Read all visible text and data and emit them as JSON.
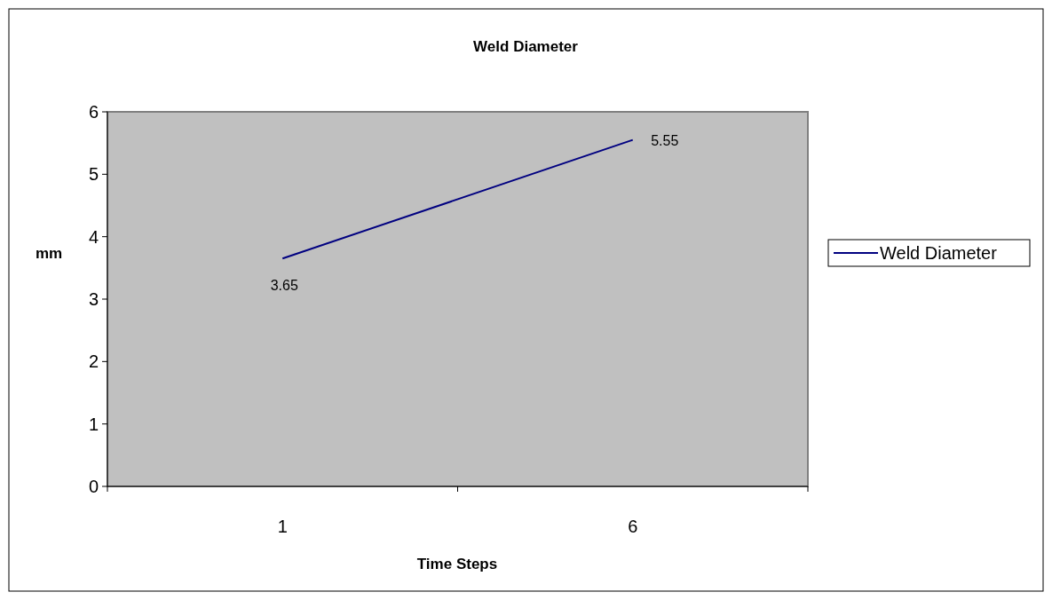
{
  "chart_data": {
    "type": "line",
    "title": "Weld Diameter",
    "xlabel": "Time Steps",
    "ylabel": "mm",
    "categories": [
      "1",
      "6"
    ],
    "series": [
      {
        "name": "Weld Diameter",
        "color": "#000080",
        "values": [
          3.65,
          5.55
        ]
      }
    ],
    "ylim": [
      0,
      6
    ],
    "yticks": [
      0,
      1,
      2,
      3,
      4,
      5,
      6
    ],
    "data_labels": true,
    "legend": "right",
    "grid": false,
    "marker": "none",
    "line_style": "solid"
  }
}
